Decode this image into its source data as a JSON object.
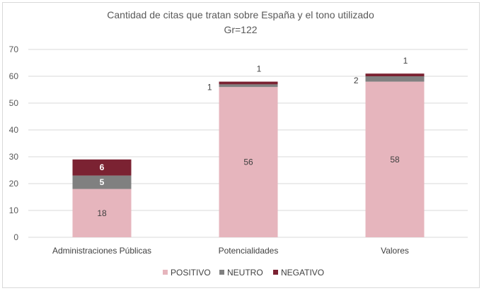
{
  "chart_data": {
    "type": "bar",
    "stacked": true,
    "title": "Cantidad de citas que tratan sobre España y el tono utilizado",
    "subtitle": "Gr=122",
    "xlabel": "",
    "ylabel": "",
    "ylim": [
      0,
      70
    ],
    "yticks": [
      0,
      10,
      20,
      30,
      40,
      50,
      60,
      70
    ],
    "grid": true,
    "legend_position": "bottom",
    "categories": [
      "Administraciones Públicas",
      "Potencialidades",
      "Valores"
    ],
    "series": [
      {
        "name": "POSITIVO",
        "color": "#e6b5bd",
        "values": [
          18,
          56,
          58
        ],
        "labels": [
          "18",
          "56",
          "58"
        ],
        "label_style": "inside-dark"
      },
      {
        "name": "NEUTRO",
        "color": "#808080",
        "values": [
          5,
          1,
          2
        ],
        "labels": [
          "5",
          "1",
          "2"
        ],
        "label_style": "mixed"
      },
      {
        "name": "NEGATIVO",
        "color": "#7b2232",
        "values": [
          6,
          1,
          1
        ],
        "labels": [
          "6",
          "1",
          "1"
        ],
        "label_style": "mixed"
      }
    ]
  }
}
